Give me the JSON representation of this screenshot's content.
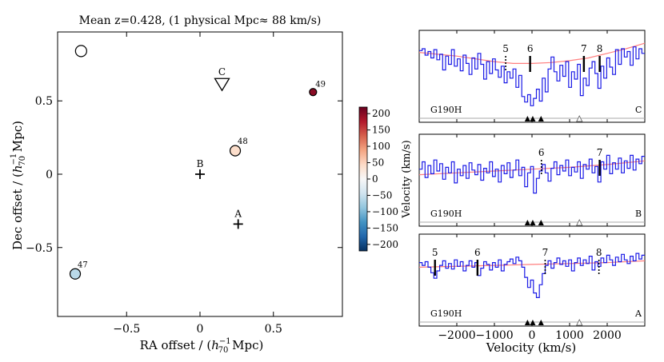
{
  "chart_data": [
    {
      "type": "scatter",
      "title": "Mean z=0.428, (1 physical Mpc≈ 88 km/s)",
      "xlabel": "RA offset / (h_70^-1 Mpc)",
      "ylabel": "Dec offset  / (h_70^-1 Mpc)",
      "xlim": [
        -0.97,
        0.97
      ],
      "ylim": [
        -0.97,
        0.97
      ],
      "xticks": [
        -0.5,
        0.0,
        0.5
      ],
      "yticks": [
        -0.5,
        0.0,
        0.5
      ],
      "xtick_labels": [
        "−0.5",
        "0",
        "0.5"
      ],
      "ytick_labels": [
        "−0.5",
        "0",
        "0.5"
      ],
      "sightlines": [
        {
          "label": "A",
          "x": 0.26,
          "y": -0.34,
          "marker": "plus"
        },
        {
          "label": "B",
          "x": 0.0,
          "y": 0.0,
          "marker": "plus"
        },
        {
          "label": "C",
          "x": 0.15,
          "y": 0.62,
          "marker": "triangle-down"
        }
      ],
      "galaxies": [
        {
          "label": "47",
          "x": -0.85,
          "y": -0.68,
          "velocity": -60
        },
        {
          "label": "48",
          "x": 0.24,
          "y": 0.16,
          "velocity": 40
        },
        {
          "label": "49",
          "x": 0.77,
          "y": 0.56,
          "velocity": 200
        },
        {
          "label": "",
          "x": -0.81,
          "y": 0.84,
          "velocity": null
        }
      ]
    },
    {
      "type": "colorbar",
      "label": "Velocity (km/s)",
      "range": [
        -220,
        220
      ],
      "colormap": "RdBu_r",
      "ticks": [
        200,
        150,
        100,
        50,
        0,
        -50,
        -100,
        -150,
        -200
      ],
      "tick_labels": [
        "200",
        "150",
        "100",
        "50",
        "0",
        "−50",
        "−100",
        "−150",
        "−200"
      ],
      "colors": [
        "#053061",
        "#2166ac",
        "#4393c3",
        "#92c5de",
        "#d1e5f0",
        "#f7f7f7",
        "#fddbc7",
        "#f4a582",
        "#d6604d",
        "#b2182b",
        "#67001f"
      ]
    },
    {
      "type": "line",
      "xlabel": "Velocity (km/s)",
      "xlim": [
        -3000,
        3000
      ],
      "xticks": [
        -2000,
        -1000,
        0,
        1000,
        2000
      ],
      "xtick_labels": [
        "−2000",
        "−1000",
        "0",
        "1000",
        "2000"
      ],
      "panels": [
        {
          "instrument": "G190H",
          "sightline": "C",
          "spectrum": [
            0.78,
            0.8,
            0.73,
            0.77,
            0.7,
            0.79,
            0.68,
            0.74,
            0.57,
            0.72,
            0.63,
            0.79,
            0.61,
            0.69,
            0.56,
            0.73,
            0.64,
            0.52,
            0.7,
            0.58,
            0.75,
            0.63,
            0.47,
            0.66,
            0.53,
            0.69,
            0.57,
            0.49,
            0.61,
            0.43,
            0.55,
            0.48,
            0.58,
            0.38,
            0.51,
            0.28,
            0.22,
            0.3,
            0.18,
            0.26,
            0.36,
            0.23,
            0.48,
            0.33,
            0.58,
            0.71,
            0.55,
            0.45,
            0.62,
            0.5,
            0.66,
            0.38,
            0.55,
            0.47,
            0.63,
            0.29,
            0.48,
            0.4,
            0.59,
            0.66,
            0.53,
            0.37,
            0.61,
            0.48,
            0.7,
            0.6,
            0.52,
            0.79,
            0.63,
            0.8,
            0.71,
            0.77,
            0.62,
            0.82,
            0.69,
            0.8,
            0.75
          ],
          "continuum": [
            [
              -3000,
              0.76
            ],
            [
              -2000,
              0.72
            ],
            [
              -1000,
              0.66
            ],
            [
              -500,
              0.64
            ],
            [
              0,
              0.64
            ],
            [
              500,
              0.65
            ],
            [
              1000,
              0.67
            ],
            [
              1500,
              0.7
            ],
            [
              2000,
              0.75
            ],
            [
              2500,
              0.8
            ],
            [
              3000,
              0.86
            ]
          ],
          "lines": [
            {
              "label": "5",
              "v": -700,
              "style": "dotted"
            },
            {
              "label": "6",
              "v": -50,
              "style": "solid"
            },
            {
              "label": "7",
              "v": 1380,
              "style": "solid"
            },
            {
              "label": "8",
              "v": 1800,
              "style": "solid"
            }
          ]
        },
        {
          "instrument": "G190H",
          "sightline": "B",
          "spectrum": [
            0.62,
            0.7,
            0.53,
            0.66,
            0.57,
            0.72,
            0.6,
            0.68,
            0.51,
            0.64,
            0.58,
            0.7,
            0.47,
            0.62,
            0.55,
            0.66,
            0.52,
            0.69,
            0.61,
            0.56,
            0.67,
            0.5,
            0.63,
            0.58,
            0.7,
            0.54,
            0.62,
            0.48,
            0.66,
            0.57,
            0.69,
            0.53,
            0.61,
            0.72,
            0.55,
            0.64,
            0.43,
            0.58,
            0.65,
            0.36,
            0.52,
            0.6,
            0.67,
            0.58,
            0.49,
            0.63,
            0.7,
            0.56,
            0.66,
            0.6,
            0.72,
            0.55,
            0.64,
            0.59,
            0.7,
            0.52,
            0.67,
            0.62,
            0.73,
            0.58,
            0.65,
            0.48,
            0.7,
            0.62,
            0.77,
            0.57,
            0.69,
            0.62,
            0.74,
            0.58,
            0.71,
            0.63,
            0.77,
            0.61,
            0.73,
            0.68,
            0.76
          ],
          "continuum": [
            [
              -3000,
              0.56
            ],
            [
              -2000,
              0.58
            ],
            [
              -1000,
              0.6
            ],
            [
              0,
              0.62
            ],
            [
              1000,
              0.64
            ],
            [
              2000,
              0.67
            ],
            [
              3000,
              0.71
            ]
          ],
          "lines": [
            {
              "label": "6",
              "v": 250,
              "style": "dotted"
            },
            {
              "label": "7",
              "v": 1800,
              "style": "solid"
            }
          ]
        },
        {
          "instrument": "G190H",
          "sightline": "A",
          "spectrum": [
            0.69,
            0.66,
            0.7,
            0.64,
            0.58,
            0.52,
            0.6,
            0.66,
            0.71,
            0.63,
            0.68,
            0.62,
            0.72,
            0.65,
            0.7,
            0.6,
            0.66,
            0.71,
            0.64,
            0.69,
            0.55,
            0.63,
            0.7,
            0.67,
            0.61,
            0.69,
            0.64,
            0.72,
            0.6,
            0.67,
            0.7,
            0.73,
            0.68,
            0.75,
            0.71,
            0.64,
            0.53,
            0.42,
            0.5,
            0.36,
            0.31,
            0.45,
            0.57,
            0.66,
            0.71,
            0.63,
            0.69,
            0.74,
            0.67,
            0.71,
            0.65,
            0.72,
            0.6,
            0.69,
            0.74,
            0.66,
            0.72,
            0.68,
            0.76,
            0.61,
            0.7,
            0.65,
            0.74,
            0.69,
            0.77,
            0.72,
            0.66,
            0.75,
            0.7,
            0.78,
            0.72,
            0.68,
            0.76,
            0.71,
            0.79,
            0.73,
            0.77
          ],
          "continuum": [
            [
              -3000,
              0.64
            ],
            [
              -1000,
              0.66
            ],
            [
              0,
              0.67
            ],
            [
              1000,
              0.68
            ],
            [
              2000,
              0.69
            ],
            [
              3000,
              0.71
            ]
          ],
          "lines": [
            {
              "label": "5",
              "v": -2580,
              "style": "solid"
            },
            {
              "label": "6",
              "v": -1450,
              "style": "solid"
            },
            {
              "label": "7",
              "v": 350,
              "style": "dotted"
            },
            {
              "label": "8",
              "v": 1780,
              "style": "dotted"
            }
          ]
        }
      ],
      "markers": {
        "filled_v": [
          -120,
          20,
          240
        ],
        "open_v": [
          1260
        ]
      }
    }
  ]
}
